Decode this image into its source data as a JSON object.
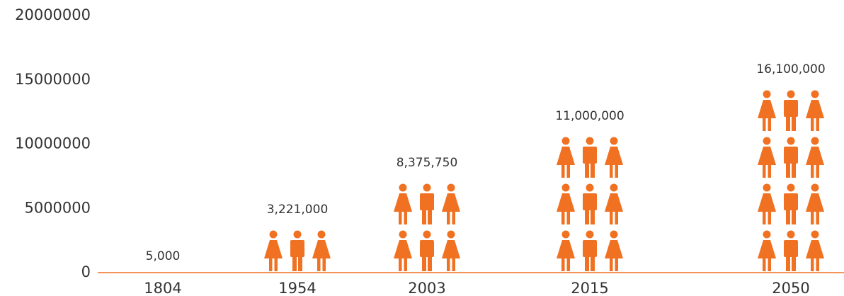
{
  "chart_data": {
    "type": "pictograph",
    "categories": [
      "1804",
      "1954",
      "2003",
      "2015",
      "2050"
    ],
    "values": [
      5000,
      3221000,
      8375750,
      11000000,
      16100000
    ],
    "value_labels": [
      "5,000",
      "3,221,000",
      "8,375,750",
      "11,000,000",
      "16,100,000"
    ],
    "color": "#f07122",
    "ylim": [
      0,
      20000000
    ],
    "yticks": [
      0,
      5000000,
      10000000,
      15000000,
      20000000
    ],
    "grid": false
  }
}
